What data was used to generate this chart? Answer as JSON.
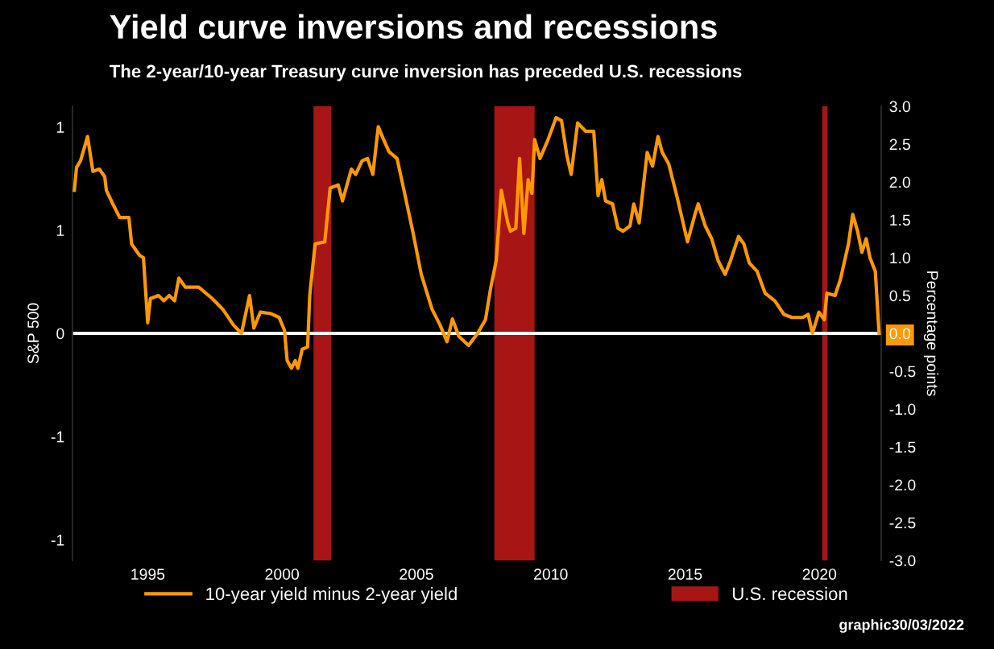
{
  "chart_data": {
    "type": "line",
    "title": "Yield curve inversions and recessions",
    "subtitle": "The 2-year/10-year Treasury curve inversion has preceded U.S. recessions",
    "ylabel": "S&P 500",
    "y2label": "Percentage points",
    "xlim": [
      1992.2,
      2022.3
    ],
    "xticks": [
      1995,
      2000,
      2005,
      2010,
      2015,
      2020
    ],
    "ylim": [
      -1.1,
      1.1
    ],
    "yticks": [
      1,
      {
        "value": 0.5,
        "label": "1"
      },
      0,
      {
        "value": -0.5,
        "label": "-1"
      },
      -1
    ],
    "y2lim": [
      -3,
      3
    ],
    "y2ticks": [
      {
        "value": 3,
        "label": "3.0"
      },
      {
        "value": 2.5,
        "label": "2.5"
      },
      {
        "value": 2,
        "label": "2.0"
      },
      {
        "value": 1.5,
        "label": "1.5"
      },
      {
        "value": 1,
        "label": "1.0"
      },
      {
        "value": 0.5,
        "label": "0.5"
      },
      {
        "value": 0,
        "label": "0.0"
      },
      {
        "value": -0.5,
        "label": "-0.5"
      },
      {
        "value": -1,
        "label": "-1.0"
      },
      {
        "value": -1.5,
        "label": "-1.5"
      },
      {
        "value": -2,
        "label": "-2.0"
      },
      {
        "value": -2.5,
        "label": "-2.5"
      },
      {
        "value": -3,
        "label": "-3.0"
      }
    ],
    "series": [
      {
        "name": "10-year yield minus 2-year yield",
        "color": "#ff9900",
        "axis": "y2",
        "x": [
          1992.27,
          1992.35,
          1992.5,
          1992.76,
          1992.96,
          1993.2,
          1993.4,
          1993.46,
          1993.7,
          1993.96,
          1994.3,
          1994.4,
          1994.7,
          1994.84,
          1995.0,
          1995.1,
          1995.4,
          1995.6,
          1995.8,
          1996.0,
          1996.16,
          1996.4,
          1996.9,
          1997.4,
          1997.79,
          1998.19,
          1998.49,
          1998.79,
          1998.95,
          1999.19,
          1999.59,
          1999.89,
          2000.09,
          2000.19,
          2000.35,
          2000.49,
          2000.59,
          2000.75,
          2000.95,
          2001.03,
          2001.23,
          2001.59,
          2001.79,
          2002.09,
          2002.25,
          2002.58,
          2002.74,
          2002.98,
          2003.18,
          2003.38,
          2003.58,
          2003.78,
          2003.98,
          2004.28,
          2004.58,
          2004.88,
          2005.18,
          2005.58,
          2005.88,
          2006.14,
          2006.34,
          2006.58,
          2006.94,
          2007.28,
          2007.57,
          2007.77,
          2007.97,
          2008.16,
          2008.4,
          2008.5,
          2008.7,
          2008.84,
          2009.0,
          2009.16,
          2009.3,
          2009.4,
          2009.6,
          2009.9,
          2010.2,
          2010.4,
          2010.6,
          2010.76,
          2011.0,
          2011.3,
          2011.6,
          2011.76,
          2011.9,
          2012.04,
          2012.3,
          2012.5,
          2012.69,
          2012.95,
          2013.09,
          2013.29,
          2013.59,
          2013.79,
          2013.99,
          2014.15,
          2014.39,
          2014.69,
          2015.09,
          2015.39,
          2015.49,
          2015.75,
          2015.99,
          2016.23,
          2016.49,
          2016.69,
          2016.99,
          2017.19,
          2017.39,
          2017.68,
          2017.98,
          2018.34,
          2018.68,
          2018.98,
          2019.38,
          2019.58,
          2019.74,
          2019.98,
          2020.18,
          2020.28,
          2020.58,
          2020.78,
          2021.08,
          2021.24,
          2021.42,
          2021.58,
          2021.74,
          2021.88,
          2022.08,
          2022.22
        ],
        "values": [
          1.89,
          2.19,
          2.28,
          2.6,
          2.14,
          2.17,
          2.07,
          1.89,
          1.71,
          1.53,
          1.53,
          1.18,
          1.03,
          1.0,
          0.14,
          0.46,
          0.5,
          0.43,
          0.5,
          0.43,
          0.73,
          0.61,
          0.61,
          0.46,
          0.32,
          0.11,
          0.0,
          0.5,
          0.07,
          0.28,
          0.26,
          0.21,
          0.04,
          -0.36,
          -0.46,
          -0.36,
          -0.46,
          -0.21,
          -0.18,
          0.5,
          1.18,
          1.21,
          1.92,
          1.96,
          1.75,
          2.17,
          2.1,
          2.28,
          2.31,
          2.1,
          2.73,
          2.56,
          2.4,
          2.31,
          1.82,
          1.32,
          0.78,
          0.32,
          0.11,
          -0.11,
          0.19,
          -0.04,
          -0.16,
          0.0,
          0.18,
          0.61,
          0.96,
          1.89,
          1.46,
          1.35,
          1.39,
          2.31,
          1.32,
          2.03,
          1.85,
          2.56,
          2.31,
          2.56,
          2.85,
          2.81,
          2.35,
          2.1,
          2.78,
          2.67,
          2.67,
          1.82,
          2.03,
          1.75,
          1.71,
          1.39,
          1.35,
          1.42,
          1.71,
          1.46,
          2.39,
          2.21,
          2.6,
          2.39,
          2.24,
          1.82,
          1.21,
          1.6,
          1.71,
          1.42,
          1.25,
          0.96,
          0.78,
          0.96,
          1.28,
          1.18,
          0.93,
          0.82,
          0.53,
          0.43,
          0.25,
          0.21,
          0.21,
          0.25,
          0.0,
          0.28,
          0.18,
          0.53,
          0.5,
          0.71,
          1.18,
          1.57,
          1.35,
          1.07,
          1.25,
          1.0,
          0.82,
          0.0
        ]
      }
    ],
    "bands": [
      {
        "axis": "x",
        "from": 2001.17,
        "to": 2001.83,
        "label": "U.S. recession",
        "color": "#a81515"
      },
      {
        "axis": "x",
        "from": 2007.9,
        "to": 2009.4,
        "color": "#a81515"
      },
      {
        "axis": "x",
        "from": 2020.1,
        "to": 2020.3,
        "color": "#a81515"
      }
    ],
    "ref_lines": [
      {
        "axis": "y2",
        "value": 0,
        "color": "#ffffff"
      }
    ],
    "annotations": [
      "graphic30/03/2022"
    ],
    "legend": "bottom",
    "grid": false
  }
}
